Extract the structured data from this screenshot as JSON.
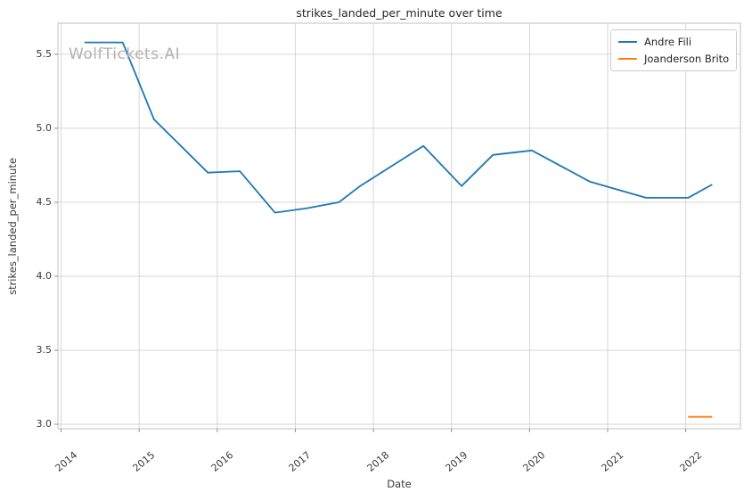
{
  "title": "strikes_landed_per_minute over time",
  "watermark": "WolfTickets.AI",
  "axes": {
    "xlabel": "Date",
    "ylabel": "strikes_landed_per_minute",
    "x_tick_labels": [
      "2014",
      "2015",
      "2016",
      "2017",
      "2018",
      "2019",
      "2020",
      "2021",
      "2022"
    ],
    "y_tick_labels": [
      "3.0",
      "3.5",
      "4.0",
      "4.5",
      "5.0",
      "5.5"
    ]
  },
  "legend": {
    "items": [
      {
        "label": "Andre Fili",
        "color": "#1f77b4"
      },
      {
        "label": "Joanderson Brito",
        "color": "#ff7f0e"
      }
    ]
  },
  "chart_data": {
    "type": "line",
    "title": "strikes_landed_per_minute over time",
    "xlabel": "Date",
    "ylabel": "strikes_landed_per_minute",
    "xlim": [
      2013.96,
      2022.7
    ],
    "ylim": [
      2.97,
      5.71
    ],
    "x_ticks": [
      2014,
      2015,
      2016,
      2017,
      2018,
      2019,
      2020,
      2021,
      2022
    ],
    "y_ticks": [
      3.0,
      3.5,
      4.0,
      4.5,
      5.0,
      5.5
    ],
    "grid": true,
    "legend_position": "upper right",
    "series": [
      {
        "name": "Andre Fili",
        "color": "#1f77b4",
        "x": [
          2014.3,
          2014.79,
          2015.19,
          2015.88,
          2016.29,
          2016.74,
          2017.15,
          2017.56,
          2017.83,
          2018.64,
          2019.13,
          2019.53,
          2020.03,
          2020.77,
          2021.49,
          2022.03,
          2022.34
        ],
        "y": [
          5.58,
          5.58,
          5.06,
          4.7,
          4.71,
          4.43,
          4.46,
          4.5,
          4.61,
          4.88,
          4.61,
          4.82,
          4.85,
          4.64,
          4.53,
          4.53,
          4.62
        ]
      },
      {
        "name": "Joanderson Brito",
        "color": "#ff7f0e",
        "x": [
          2022.03,
          2022.34
        ],
        "y": [
          3.05,
          3.05
        ]
      }
    ]
  },
  "colors": {
    "background": "#ffffff",
    "grid": "#d6d6d6",
    "spine": "#cccccc",
    "tick_mark": "#8f8f8f",
    "title_text": "#262626",
    "tick_text": "#3a3a3a",
    "watermark": "#b2b2b2"
  }
}
